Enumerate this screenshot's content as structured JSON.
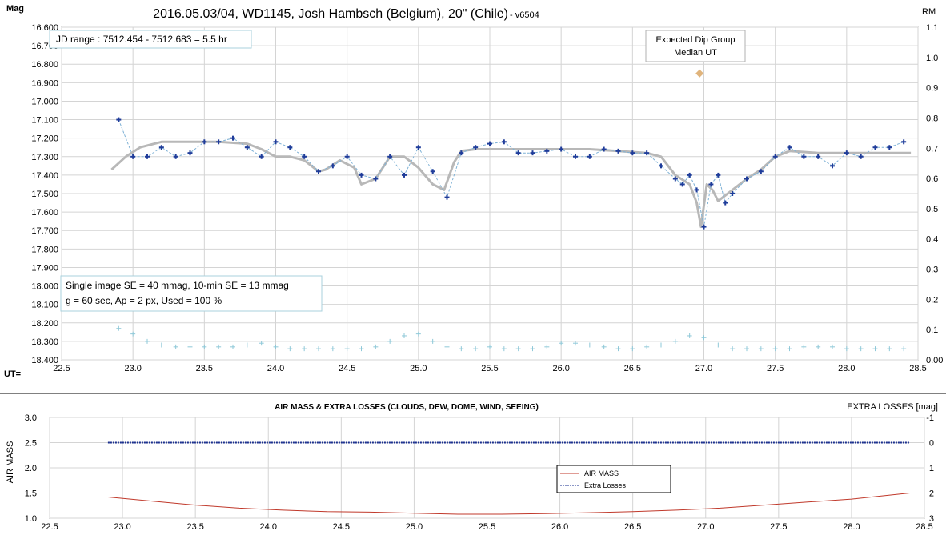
{
  "chart_data": [
    {
      "type": "scatter",
      "title": "2016.05.03/04,  WD1145, Josh Hambsch  (Belgium), 20\" (Chile)",
      "subtitle": " - v6504",
      "ylabel": "Mag",
      "y2label": "RM",
      "xlabel": "UT=",
      "xlim": [
        22.5,
        28.5
      ],
      "ylim": [
        16.6,
        18.4
      ],
      "y_inverted": true,
      "y2lim": [
        0.0,
        1.1
      ],
      "grid": true,
      "x_ticks": [
        "22.5",
        "23.0",
        "23.5",
        "24.0",
        "24.5",
        "25.0",
        "25.5",
        "26.0",
        "26.5",
        "27.0",
        "27.5",
        "28.0",
        "28.5"
      ],
      "y_ticks": [
        "16.600",
        "16.700",
        "16.800",
        "16.900",
        "17.000",
        "17.100",
        "17.200",
        "17.300",
        "17.400",
        "17.500",
        "17.600",
        "17.700",
        "17.800",
        "17.900",
        "18.000",
        "18.100",
        "18.200",
        "18.300",
        "18.400"
      ],
      "y2_ticks": [
        "0.00",
        "0.1",
        "0.2",
        "0.3",
        "0.4",
        "0.5",
        "0.6",
        "0.7",
        "0.8",
        "0.9",
        "1.0",
        "1.1"
      ],
      "annotations": {
        "jd_range": "JD range  : 7512.454  - 7512.683  = 5.5 hr",
        "se_line1": "Single image SE = 40 mmag, 10-min SE = 13 mmag",
        "se_line2": "g = 60 sec, Ap = 2 px, Used = 100 %",
        "dip_line1": "Expected Dip Group",
        "dip_line2": "Median UT"
      },
      "dip_marker": {
        "x": 26.97,
        "y": 16.85
      },
      "series": [
        {
          "color": "#1f3c9a",
          "x": [
            22.9,
            23.0,
            23.1,
            23.2,
            23.3,
            23.4,
            23.5,
            23.6,
            23.7,
            23.8,
            23.9,
            24.0,
            24.1,
            24.2,
            24.3,
            24.4,
            24.5,
            24.6,
            24.7,
            24.8,
            24.9,
            25.0,
            25.1,
            25.2,
            25.3,
            25.4,
            25.5,
            25.6,
            25.7,
            25.8,
            25.9,
            26.0,
            26.1,
            26.2,
            26.3,
            26.4,
            26.5,
            26.6,
            26.7,
            26.8,
            26.85,
            26.9,
            26.95,
            27.0,
            27.05,
            27.1,
            27.15,
            27.2,
            27.3,
            27.4,
            27.5,
            27.6,
            27.7,
            27.8,
            27.9,
            28.0,
            28.1,
            28.2,
            28.3,
            28.4
          ],
          "values": [
            17.1,
            17.3,
            17.3,
            17.25,
            17.3,
            17.28,
            17.22,
            17.22,
            17.2,
            17.25,
            17.3,
            17.22,
            17.25,
            17.3,
            17.38,
            17.35,
            17.3,
            17.4,
            17.42,
            17.3,
            17.4,
            17.25,
            17.38,
            17.52,
            17.28,
            17.25,
            17.23,
            17.22,
            17.28,
            17.28,
            17.27,
            17.26,
            17.3,
            17.3,
            17.26,
            17.27,
            17.28,
            17.28,
            17.35,
            17.42,
            17.45,
            17.4,
            17.48,
            17.68,
            17.45,
            17.4,
            17.55,
            17.5,
            17.42,
            17.38,
            17.3,
            17.25,
            17.3,
            17.3,
            17.35,
            17.28,
            17.3,
            17.25,
            17.25,
            17.22
          ]
        },
        {
          "color": "#b8b8b8",
          "x": [
            22.85,
            22.95,
            23.05,
            23.2,
            23.4,
            23.6,
            23.8,
            23.9,
            24.0,
            24.1,
            24.2,
            24.3,
            24.35,
            24.45,
            24.55,
            24.6,
            24.7,
            24.8,
            24.9,
            25.0,
            25.1,
            25.18,
            25.25,
            25.3,
            25.4,
            25.6,
            25.8,
            26.0,
            26.2,
            26.4,
            26.6,
            26.7,
            26.8,
            26.9,
            26.95,
            26.98,
            27.02,
            27.06,
            27.1,
            27.2,
            27.3,
            27.4,
            27.5,
            27.6,
            27.8,
            28.0,
            28.2,
            28.45
          ],
          "values": [
            17.37,
            17.3,
            17.25,
            17.22,
            17.22,
            17.22,
            17.23,
            17.26,
            17.3,
            17.3,
            17.32,
            17.38,
            17.37,
            17.32,
            17.36,
            17.45,
            17.42,
            17.3,
            17.3,
            17.36,
            17.45,
            17.48,
            17.33,
            17.27,
            17.26,
            17.26,
            17.26,
            17.26,
            17.26,
            17.27,
            17.28,
            17.3,
            17.4,
            17.45,
            17.55,
            17.68,
            17.45,
            17.48,
            17.54,
            17.48,
            17.42,
            17.37,
            17.3,
            17.27,
            17.28,
            17.28,
            17.28,
            17.28
          ]
        },
        {
          "color": "#8ec8d8",
          "x": [
            22.9,
            23.0,
            23.1,
            23.2,
            23.3,
            23.4,
            23.5,
            23.6,
            23.7,
            23.8,
            23.9,
            24.0,
            24.1,
            24.2,
            24.3,
            24.4,
            24.5,
            24.6,
            24.7,
            24.8,
            24.9,
            25.0,
            25.1,
            25.2,
            25.3,
            25.4,
            25.5,
            25.6,
            25.7,
            25.8,
            25.9,
            26.0,
            26.1,
            26.2,
            26.3,
            26.4,
            26.5,
            26.6,
            26.7,
            26.8,
            26.9,
            27.0,
            27.1,
            27.2,
            27.3,
            27.4,
            27.5,
            27.6,
            27.7,
            27.8,
            27.9,
            28.0,
            28.1,
            28.2,
            28.3,
            28.4
          ],
          "values": [
            18.23,
            18.26,
            18.3,
            18.32,
            18.33,
            18.33,
            18.33,
            18.33,
            18.33,
            18.32,
            18.31,
            18.33,
            18.34,
            18.34,
            18.34,
            18.34,
            18.34,
            18.34,
            18.33,
            18.3,
            18.27,
            18.26,
            18.3,
            18.33,
            18.34,
            18.34,
            18.33,
            18.34,
            18.34,
            18.34,
            18.33,
            18.31,
            18.31,
            18.32,
            18.33,
            18.34,
            18.34,
            18.33,
            18.32,
            18.3,
            18.27,
            18.28,
            18.32,
            18.34,
            18.34,
            18.34,
            18.34,
            18.34,
            18.33,
            18.33,
            18.33,
            18.34,
            18.34,
            18.34,
            18.34,
            18.34
          ]
        }
      ]
    },
    {
      "type": "line",
      "title": "AIR MASS & EXTRA LOSSES (CLOUDS, DEW, DOME, WIND, SEEING)",
      "ylabel": "AIR MASS",
      "y2label": "EXTRA LOSSES [mag]",
      "xlim": [
        22.5,
        28.5
      ],
      "ylim": [
        1.0,
        3.0
      ],
      "y2lim": [
        -1,
        3
      ],
      "y2_inverted": true,
      "grid": true,
      "x_ticks": [
        "22.5",
        "23.0",
        "23.5",
        "24.0",
        "24.5",
        "25.0",
        "25.5",
        "26.0",
        "26.5",
        "27.0",
        "27.5",
        "28.0",
        "28.5"
      ],
      "y_ticks": [
        "1.0",
        "1.5",
        "2.0",
        "2.5",
        "3.0"
      ],
      "y2_ticks": [
        "-1",
        "0",
        "1",
        "2",
        "3"
      ],
      "series": [
        {
          "name": "AIR MASS",
          "color": "#c0392b",
          "x": [
            22.9,
            23.2,
            23.5,
            23.8,
            24.1,
            24.4,
            24.7,
            25.0,
            25.3,
            25.6,
            25.9,
            26.2,
            26.5,
            26.8,
            27.1,
            27.4,
            27.7,
            28.0,
            28.4
          ],
          "values": [
            1.42,
            1.34,
            1.26,
            1.2,
            1.16,
            1.13,
            1.12,
            1.1,
            1.08,
            1.08,
            1.09,
            1.11,
            1.13,
            1.16,
            1.2,
            1.26,
            1.32,
            1.38,
            1.5
          ]
        },
        {
          "name": "Extra Losses",
          "color": "#1a2f8f",
          "x": [
            22.9,
            23.5,
            24.0,
            24.5,
            25.0,
            25.5,
            26.0,
            26.5,
            27.0,
            27.5,
            28.0,
            28.4
          ],
          "values": [
            0.0,
            0.0,
            0.0,
            0.0,
            0.0,
            0.0,
            0.0,
            0.0,
            0.0,
            0.0,
            0.0,
            0.0
          ]
        }
      ]
    }
  ]
}
